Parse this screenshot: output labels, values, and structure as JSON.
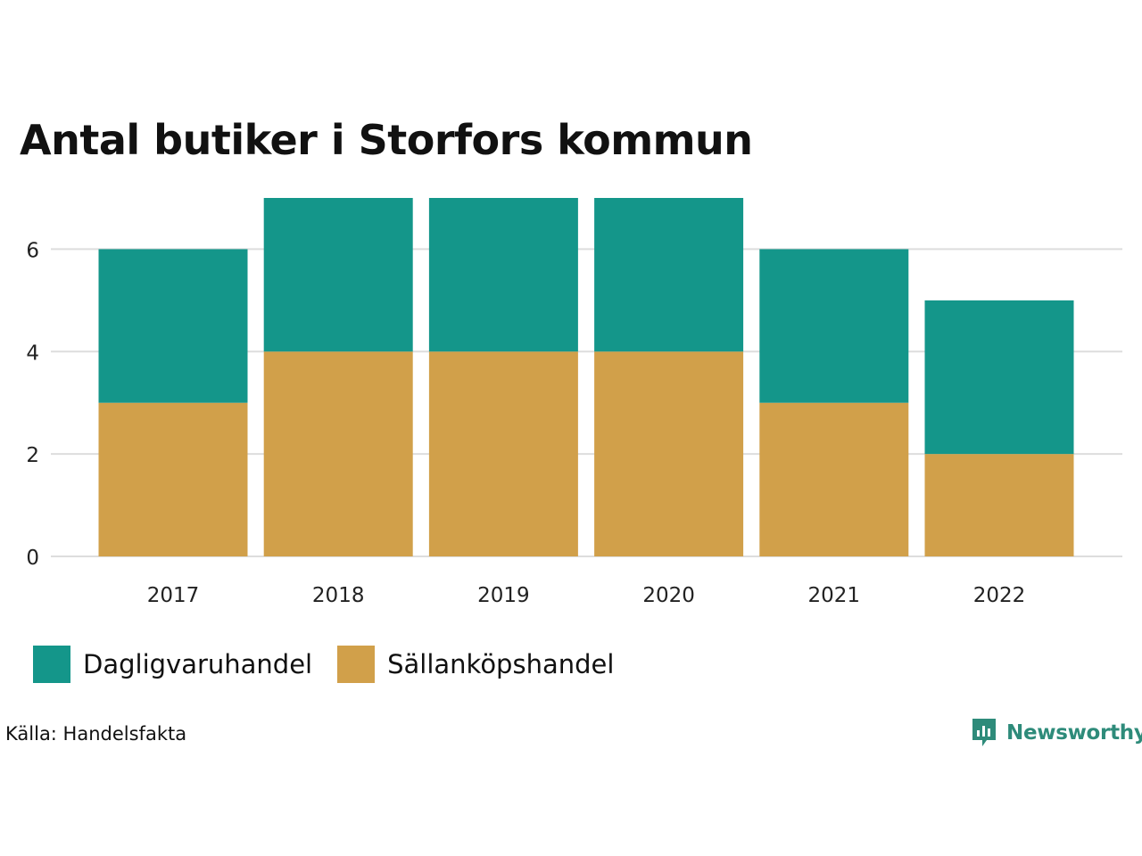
{
  "title": "Antal butiker i Storfors kommun",
  "source": "Källa: Handelsfakta",
  "brand": {
    "name": "Newsworthy",
    "icon": "newsworthy-logo-icon"
  },
  "colors": {
    "Dagligvaruhandel": "#14968a",
    "Sällanköpshandel": "#d1a04a",
    "grid": "#dddddd"
  },
  "legend": [
    {
      "label": "Dagligvaruhandel",
      "color": "#14968a"
    },
    {
      "label": "Sällanköpshandel",
      "color": "#d1a04a"
    }
  ],
  "chart_data": {
    "type": "bar",
    "stacked": true,
    "title": "Antal butiker i Storfors kommun",
    "xlabel": "",
    "ylabel": "",
    "categories": [
      "2017",
      "2018",
      "2019",
      "2020",
      "2021",
      "2022"
    ],
    "series": [
      {
        "name": "Sällanköpshandel",
        "values": [
          3,
          4,
          4,
          4,
          3,
          2
        ]
      },
      {
        "name": "Dagligvaruhandel",
        "values": [
          3,
          3,
          3,
          3,
          3,
          3
        ]
      }
    ],
    "yticks": [
      0,
      2,
      4,
      6
    ],
    "ylim": [
      0,
      7
    ],
    "grid": true,
    "legend_position": "bottom-left"
  }
}
